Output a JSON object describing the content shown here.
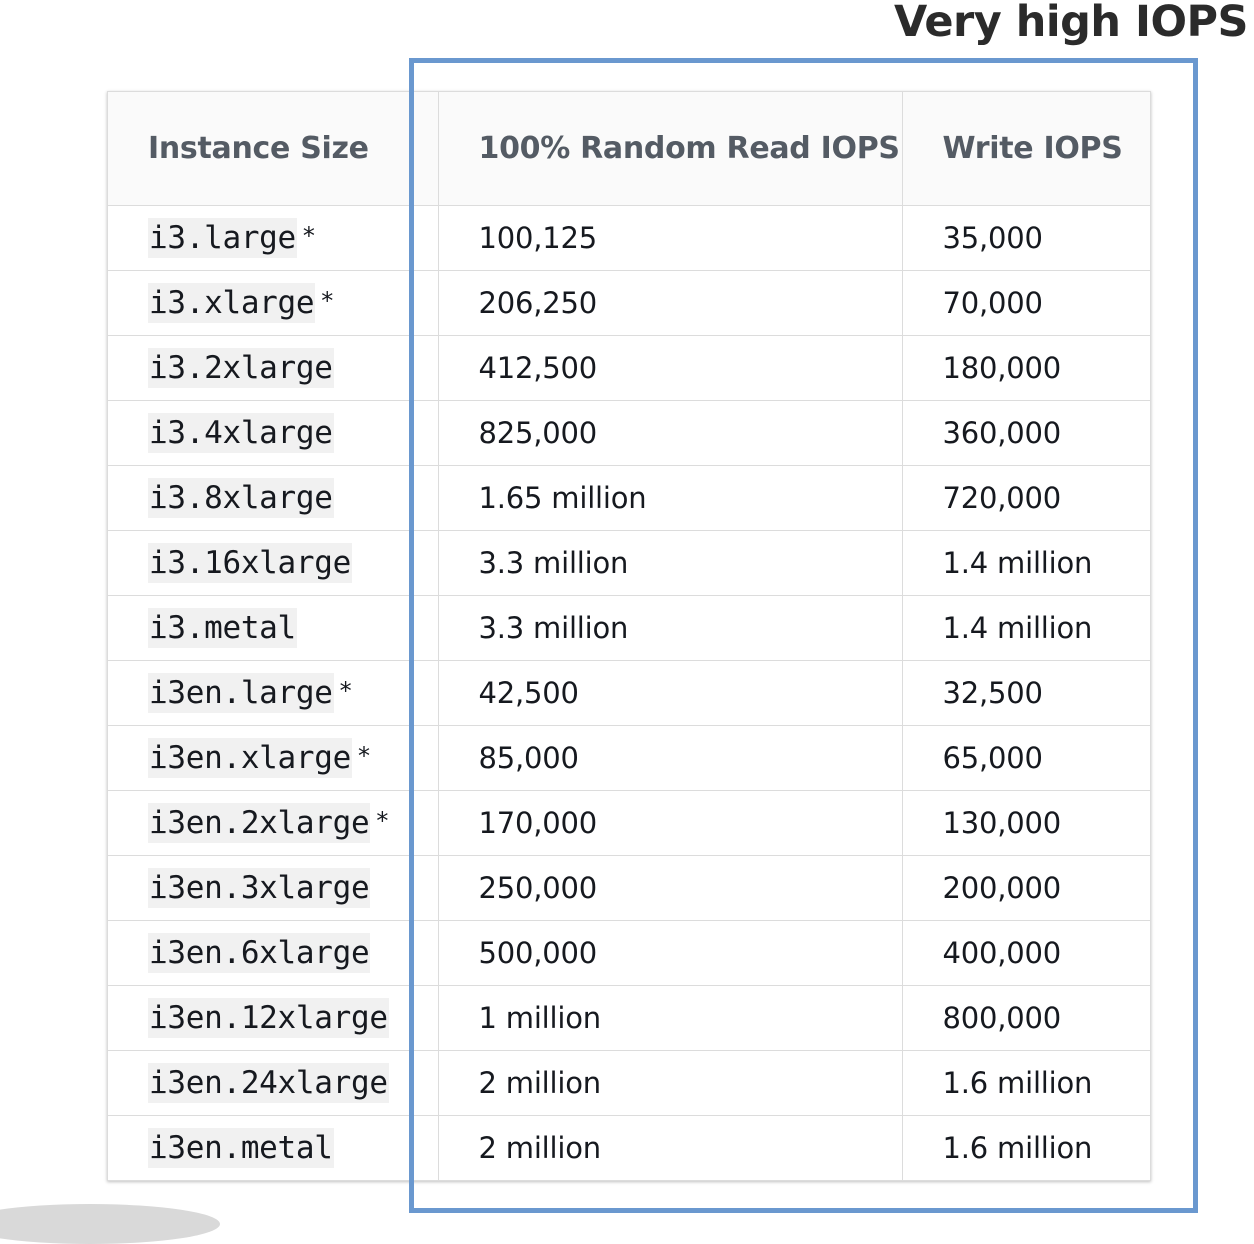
{
  "callout": {
    "title": "Very high IOPS"
  },
  "table": {
    "headers": [
      "Instance Size",
      "100% Random Read IOPS",
      "Write IOPS"
    ],
    "rows": [
      {
        "instance": "i3.large",
        "note": "*",
        "read": "100,125",
        "write": "35,000"
      },
      {
        "instance": "i3.xlarge",
        "note": "*",
        "read": "206,250",
        "write": "70,000"
      },
      {
        "instance": "i3.2xlarge",
        "note": "",
        "read": "412,500",
        "write": "180,000"
      },
      {
        "instance": "i3.4xlarge",
        "note": "",
        "read": "825,000",
        "write": "360,000"
      },
      {
        "instance": "i3.8xlarge",
        "note": "",
        "read": "1.65 million",
        "write": "720,000"
      },
      {
        "instance": "i3.16xlarge",
        "note": "",
        "read": "3.3 million",
        "write": "1.4 million"
      },
      {
        "instance": "i3.metal",
        "note": "",
        "read": "3.3 million",
        "write": "1.4 million"
      },
      {
        "instance": "i3en.large",
        "note": "*",
        "read": "42,500",
        "write": "32,500"
      },
      {
        "instance": "i3en.xlarge",
        "note": "*",
        "read": "85,000",
        "write": "65,000"
      },
      {
        "instance": "i3en.2xlarge",
        "note": "*",
        "read": "170,000",
        "write": "130,000"
      },
      {
        "instance": "i3en.3xlarge",
        "note": "",
        "read": "250,000",
        "write": "200,000"
      },
      {
        "instance": "i3en.6xlarge",
        "note": "",
        "read": "500,000",
        "write": "400,000"
      },
      {
        "instance": "i3en.12xlarge",
        "note": "",
        "read": "1 million",
        "write": "800,000"
      },
      {
        "instance": "i3en.24xlarge",
        "note": "",
        "read": "2 million",
        "write": "1.6 million"
      },
      {
        "instance": "i3en.metal",
        "note": "",
        "read": "2 million",
        "write": "1.6 million"
      }
    ]
  },
  "colors": {
    "highlight_border": "#6a98cf",
    "header_text": "#545b64",
    "header_bg": "#fafafa",
    "code_bg": "#f1f1f1"
  }
}
